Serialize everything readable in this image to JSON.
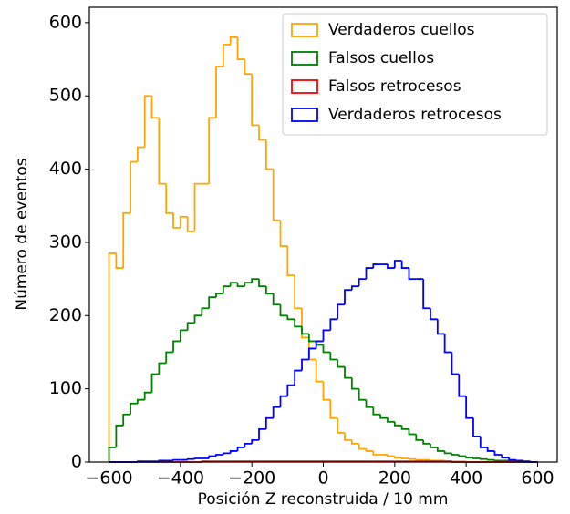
{
  "chart_data": {
    "type": "histogram",
    "xlabel": "Posición Z reconstruida / 10 mm",
    "ylabel": "Número de eventos",
    "bins": [
      -600,
      -580,
      -560,
      -540,
      -520,
      -500,
      -480,
      -460,
      -440,
      -420,
      -400,
      -380,
      -360,
      -340,
      -320,
      -300,
      -280,
      -260,
      -240,
      -220,
      -200,
      -180,
      -160,
      -140,
      -120,
      -100,
      -80,
      -60,
      -40,
      -20,
      0,
      20,
      40,
      60,
      80,
      100,
      120,
      140,
      160,
      180,
      200,
      220,
      240,
      260,
      280,
      300,
      320,
      340,
      360,
      380,
      400,
      420,
      440,
      460,
      480,
      500,
      520,
      540,
      560,
      580,
      600
    ],
    "series": [
      {
        "name": "Verdaderos cuellos",
        "color": "#ffa500",
        "values": [
          285,
          265,
          340,
          410,
          430,
          500,
          470,
          380,
          340,
          320,
          335,
          315,
          380,
          380,
          470,
          540,
          570,
          580,
          550,
          530,
          460,
          440,
          400,
          330,
          295,
          255,
          210,
          170,
          140,
          110,
          85,
          60,
          40,
          30,
          25,
          18,
          15,
          10,
          10,
          8,
          6,
          5,
          4,
          3,
          3,
          2,
          2,
          1,
          1,
          1,
          0,
          0,
          0,
          0,
          0,
          0,
          0,
          0,
          0,
          0
        ]
      },
      {
        "name": "Falsos cuellos",
        "color": "#008000",
        "values": [
          20,
          50,
          65,
          80,
          85,
          95,
          120,
          135,
          150,
          165,
          180,
          190,
          200,
          210,
          225,
          230,
          240,
          245,
          240,
          245,
          250,
          240,
          230,
          215,
          200,
          195,
          185,
          175,
          165,
          160,
          150,
          140,
          130,
          115,
          100,
          85,
          75,
          65,
          60,
          55,
          50,
          45,
          38,
          30,
          25,
          20,
          15,
          12,
          10,
          8,
          6,
          5,
          4,
          3,
          2,
          2,
          1,
          1,
          0,
          0
        ]
      },
      {
        "name": "Falsos retrocesos",
        "color": "#ff0000",
        "values": [
          0,
          0,
          0,
          0,
          0,
          0,
          0,
          0,
          0,
          0,
          0,
          0,
          0,
          1,
          1,
          1,
          1,
          1,
          1,
          1,
          1,
          1,
          1,
          1,
          1,
          1,
          1,
          1,
          1,
          1,
          1,
          1,
          1,
          1,
          1,
          1,
          1,
          1,
          1,
          1,
          1,
          1,
          1,
          1,
          1,
          1,
          1,
          1,
          0,
          0,
          0,
          0,
          0,
          0,
          0,
          0,
          0,
          0,
          0,
          0
        ]
      },
      {
        "name": "Verdaderos retrocesos",
        "color": "#0000ff",
        "values": [
          0,
          0,
          0,
          0,
          1,
          1,
          1,
          2,
          2,
          3,
          3,
          4,
          5,
          5,
          8,
          10,
          12,
          15,
          20,
          25,
          30,
          45,
          60,
          75,
          90,
          105,
          125,
          140,
          155,
          165,
          180,
          195,
          215,
          235,
          240,
          250,
          265,
          270,
          270,
          265,
          275,
          265,
          250,
          250,
          210,
          195,
          175,
          150,
          120,
          90,
          60,
          35,
          20,
          15,
          10,
          6,
          3,
          2,
          1,
          0
        ]
      }
    ],
    "xlim": [
      -655,
      655
    ],
    "ylim": [
      0,
      621
    ],
    "xticks": [
      {
        "value": -600,
        "label": "−600"
      },
      {
        "value": -400,
        "label": "−400"
      },
      {
        "value": -200,
        "label": "−200"
      },
      0,
      200,
      400,
      600
    ],
    "yticks": [
      0,
      100,
      200,
      300,
      400,
      500,
      600
    ],
    "legend": "upper right"
  }
}
